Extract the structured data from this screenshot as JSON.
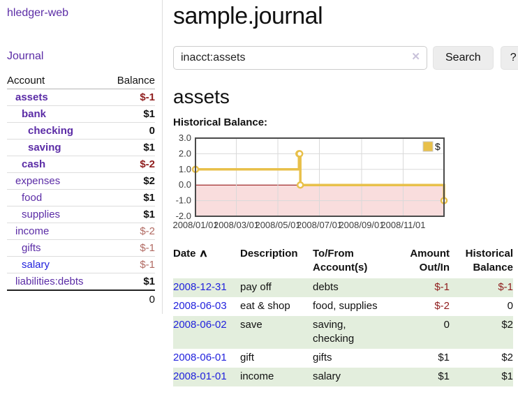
{
  "sidebar": {
    "app_title": "hledger-web",
    "nav": {
      "journal_label": "Journal"
    },
    "accounts_table": {
      "headers": {
        "account": "Account",
        "balance": "Balance"
      },
      "rows": [
        {
          "name": "assets",
          "level": 1,
          "bold": true,
          "balance": "$-1",
          "balance_tone": "negative"
        },
        {
          "name": "bank",
          "level": 2,
          "bold": true,
          "balance": "$1",
          "balance_tone": "normal"
        },
        {
          "name": "checking",
          "level": 3,
          "bold": true,
          "balance": "0",
          "balance_tone": "normal"
        },
        {
          "name": "saving",
          "level": 3,
          "bold": true,
          "balance": "$1",
          "balance_tone": "normal"
        },
        {
          "name": "cash",
          "level": 2,
          "bold": true,
          "balance": "$-2",
          "balance_tone": "negative"
        },
        {
          "name": "expenses",
          "level": 1,
          "bold": false,
          "balance": "$2",
          "balance_tone": "normal"
        },
        {
          "name": "food",
          "level": 2,
          "bold": false,
          "balance": "$1",
          "balance_tone": "normal"
        },
        {
          "name": "supplies",
          "level": 2,
          "bold": false,
          "balance": "$1",
          "balance_tone": "normal"
        },
        {
          "name": "income",
          "level": 1,
          "bold": false,
          "balance": "$-2",
          "balance_tone": "negative-soft"
        },
        {
          "name": "gifts",
          "level": 2,
          "bold": false,
          "balance": "$-1",
          "balance_tone": "negative-soft"
        },
        {
          "name": "salary",
          "level": 2,
          "bold": false,
          "balance": "$-1",
          "balance_tone": "negative-soft",
          "link_tone": "blue"
        },
        {
          "name": "liabilities:debts",
          "level": 1,
          "bold": false,
          "balance": "$1",
          "balance_tone": "normal"
        }
      ],
      "total": "0"
    }
  },
  "main": {
    "title": "sample.journal",
    "search": {
      "value": "inacct:assets",
      "clear_icon": "✕",
      "button_label": "Search",
      "help_label": "?"
    },
    "account_heading": "assets",
    "chart_title": "Historical Balance:",
    "register": {
      "headers": {
        "date": "Date",
        "sort_icon": "∧",
        "description": "Description",
        "accounts": "To/From Account(s)",
        "amount": "Amount Out/In",
        "balance": "Historical Balance"
      },
      "rows": [
        {
          "date": "2008-12-31",
          "description": "pay off",
          "accounts": "debts",
          "amount": "$-1",
          "balance": "$-1",
          "shaded": true
        },
        {
          "date": "2008-06-03",
          "description": "eat & shop",
          "accounts": "food, supplies",
          "amount": "$-2",
          "balance": "0",
          "shaded": false
        },
        {
          "date": "2008-06-02",
          "description": "save",
          "accounts": "saving, checking",
          "amount": "0",
          "balance": "$2",
          "shaded": true
        },
        {
          "date": "2008-06-01",
          "description": "gift",
          "accounts": "gifts",
          "amount": "$1",
          "balance": "$2",
          "shaded": false
        },
        {
          "date": "2008-01-01",
          "description": "income",
          "accounts": "salary",
          "amount": "$1",
          "balance": "$1",
          "shaded": true
        }
      ]
    }
  },
  "chart_data": {
    "type": "line",
    "title": "Historical Balance:",
    "step": true,
    "legend": {
      "position": "top-right",
      "entries": [
        "$"
      ]
    },
    "series": [
      {
        "name": "$",
        "color": "#e8c04a",
        "points": [
          [
            "2008-01-01",
            1
          ],
          [
            "2008-06-01",
            2
          ],
          [
            "2008-06-02",
            2
          ],
          [
            "2008-06-03",
            0
          ],
          [
            "2008-12-31",
            -1
          ]
        ]
      }
    ],
    "x_range": [
      "2008-01-01",
      "2008-12-31"
    ],
    "ylim": [
      -2,
      3
    ],
    "y_ticks": [
      3.0,
      2.0,
      1.0,
      0.0,
      -1.0,
      -2.0
    ],
    "x_ticks": [
      "2008/01/01",
      "2008/03/01",
      "2008/05/01",
      "2008/07/01",
      "2008/09/01",
      "2008/11/01"
    ],
    "grid": true,
    "negative_region_fill": "#f9dddd",
    "zero_line_color": "#8b0000"
  },
  "colors": {
    "link_purple": "#5b2ca6",
    "link_blue": "#2222dd",
    "negative": "#8f1d1d",
    "negative_soft": "#b16a62",
    "row_stripe_green": "#e3eedd",
    "chart_line_gold": "#e8c04a",
    "chart_negative_fill": "#f9dddd",
    "chart_zero_line": "#8b0000"
  }
}
